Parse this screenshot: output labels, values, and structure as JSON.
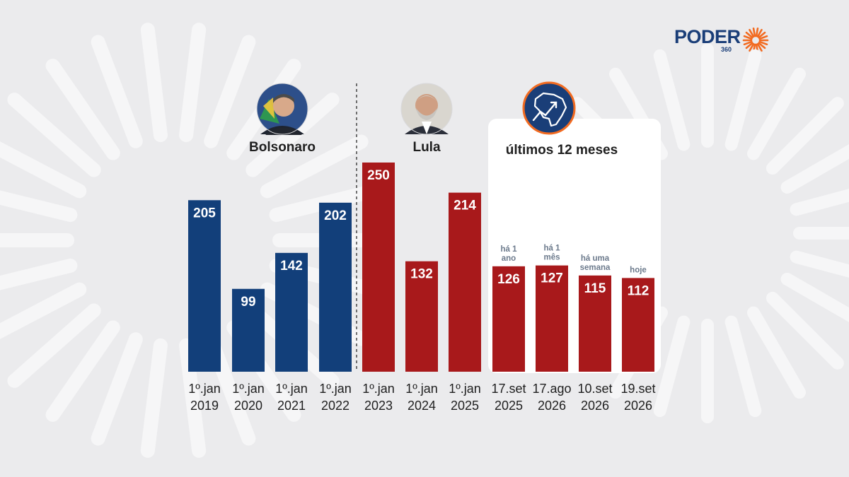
{
  "brand": {
    "name": "PODER",
    "sub": "360",
    "accent": "#f26b21",
    "navy": "#1a3e78"
  },
  "colors": {
    "background": "#ebebed",
    "panel": "#ffffff",
    "bolsonaro_bar": "#123f7a",
    "lula_bar": "#a8191b"
  },
  "groups": [
    {
      "label": "Bolsonaro",
      "icon": "bolsonaro-portrait-icon"
    },
    {
      "label": "Lula",
      "icon": "lula-portrait-icon"
    },
    {
      "label": "últimos 12 meses",
      "icon": "brazil-map-trend-icon"
    }
  ],
  "chart_data": {
    "type": "bar",
    "title": "",
    "xlabel": "",
    "ylabel": "",
    "ylim": [
      0,
      250
    ],
    "grid": false,
    "legend": "none",
    "categories": [
      [
        "1º.jan",
        "2019"
      ],
      [
        "1º.jan",
        "2020"
      ],
      [
        "1º.jan",
        "2021"
      ],
      [
        "1º.jan",
        "2022"
      ],
      [
        "1º.jan",
        "2023"
      ],
      [
        "1º.jan",
        "2024"
      ],
      [
        "1º.jan",
        "2025"
      ],
      [
        "17.set",
        "2025"
      ],
      [
        "17.ago",
        "2026"
      ],
      [
        "10.set",
        "2026"
      ],
      [
        "19.set",
        "2026"
      ]
    ],
    "values": [
      205,
      99,
      142,
      202,
      250,
      132,
      214,
      126,
      127,
      115,
      112
    ],
    "annotations": [
      null,
      null,
      null,
      null,
      null,
      null,
      null,
      [
        "há 1",
        "ano"
      ],
      [
        "há 1",
        "mês"
      ],
      [
        "há uma",
        "semana"
      ],
      [
        "hoje"
      ]
    ],
    "group_of_bar": [
      0,
      0,
      0,
      0,
      1,
      1,
      1,
      1,
      1,
      1,
      1
    ]
  }
}
